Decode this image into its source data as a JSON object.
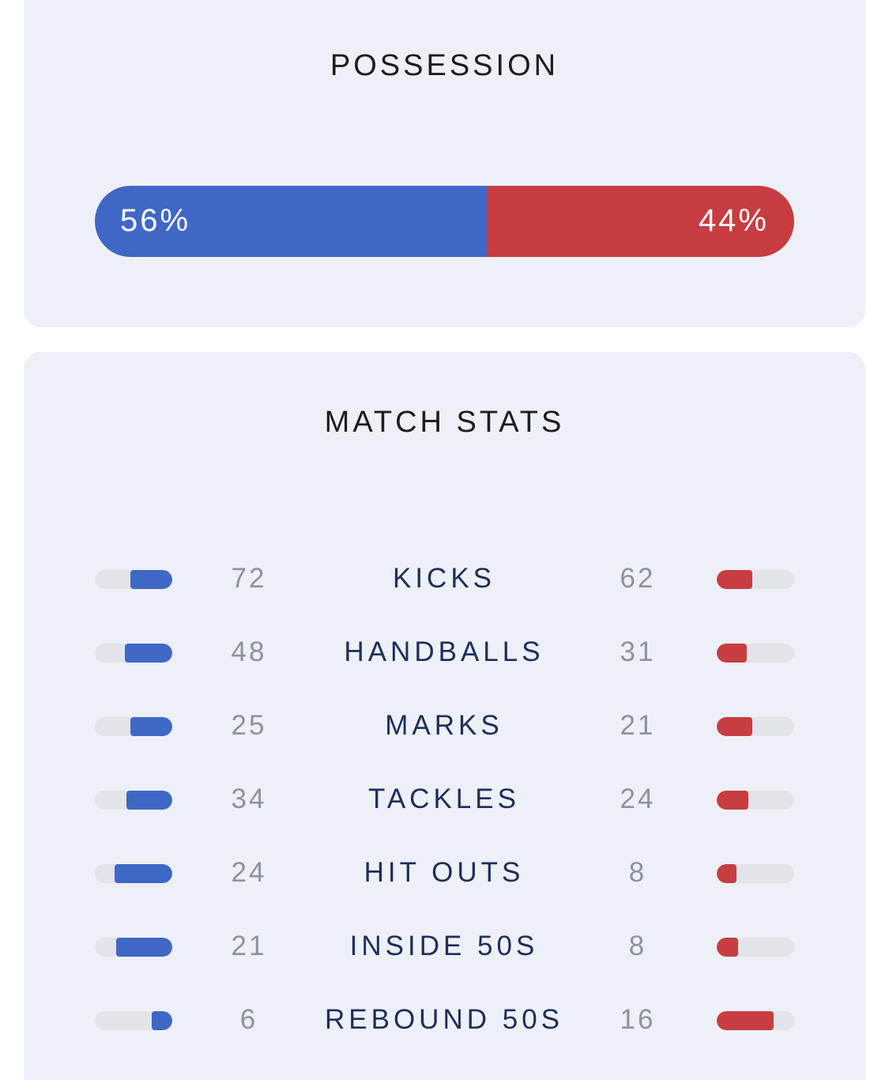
{
  "colors": {
    "home": "#3f68c6",
    "away": "#c73d41",
    "track": "#e3e4e9",
    "card_bg": "#edf0f7"
  },
  "possession": {
    "title": "POSSESSION",
    "home_value": 56,
    "away_value": 44,
    "home_label": "56%",
    "away_label": "44%"
  },
  "match_stats": {
    "title": "MATCH STATS",
    "rows": [
      {
        "label": "KICKS",
        "home": "72",
        "away": "62",
        "home_fraction": 0.54,
        "away_fraction": 0.46
      },
      {
        "label": "HANDBALLS",
        "home": "48",
        "away": "31",
        "home_fraction": 0.61,
        "away_fraction": 0.39
      },
      {
        "label": "MARKS",
        "home": "25",
        "away": "21",
        "home_fraction": 0.54,
        "away_fraction": 0.46
      },
      {
        "label": "TACKLES",
        "home": "34",
        "away": "24",
        "home_fraction": 0.59,
        "away_fraction": 0.41
      },
      {
        "label": "HIT OUTS",
        "home": "24",
        "away": "8",
        "home_fraction": 0.75,
        "away_fraction": 0.25
      },
      {
        "label": "INSIDE 50S",
        "home": "21",
        "away": "8",
        "home_fraction": 0.72,
        "away_fraction": 0.28
      },
      {
        "label": "REBOUND 50S",
        "home": "6",
        "away": "16",
        "home_fraction": 0.27,
        "away_fraction": 0.73
      }
    ]
  }
}
